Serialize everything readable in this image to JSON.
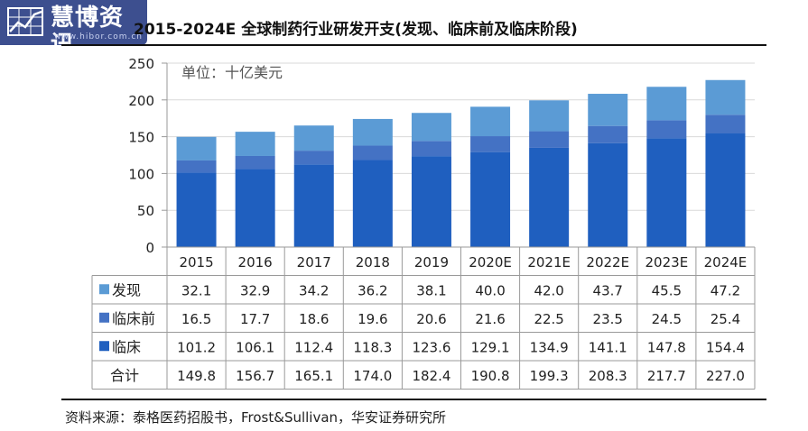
{
  "logo": {
    "text": "慧博资讯",
    "url": "www.hibor.com.cn"
  },
  "page_title": "2015-2024E 全球制药行业研发开支(发现、临床前及临床阶段)",
  "source_note": "资料来源：泰格医药招股书，Frost&Sullivan，华安证券研究所",
  "colors": {
    "discovery": "#5b9bd5",
    "preclinical": "#4472c4",
    "clinical": "#1f5fbf",
    "grid": "#d9d9d9",
    "axis": "#999999"
  },
  "chart_data": {
    "type": "bar",
    "stacked": true,
    "unit_label": "单位：十亿美元",
    "categories": [
      "2015",
      "2016",
      "2017",
      "2018",
      "2019",
      "2020E",
      "2021E",
      "2022E",
      "2023E",
      "2024E"
    ],
    "series": [
      {
        "name": "临床",
        "color": "#1f5fbf",
        "values": [
          101.2,
          106.1,
          112.4,
          118.3,
          123.6,
          129.1,
          134.9,
          141.1,
          147.8,
          154.4
        ]
      },
      {
        "name": "临床前",
        "color": "#4472c4",
        "values": [
          16.5,
          17.7,
          18.6,
          19.6,
          20.6,
          21.6,
          22.5,
          23.5,
          24.5,
          25.4
        ]
      },
      {
        "name": "发现",
        "color": "#5b9bd5",
        "values": [
          32.1,
          32.9,
          34.2,
          36.2,
          38.1,
          40.0,
          42.0,
          43.7,
          45.5,
          47.2
        ]
      }
    ],
    "table_rows": [
      {
        "name": "发现",
        "color": "#5b9bd5",
        "values": [
          "32.1",
          "32.9",
          "34.2",
          "36.2",
          "38.1",
          "40.0",
          "42.0",
          "43.7",
          "45.5",
          "47.2"
        ]
      },
      {
        "name": "临床前",
        "color": "#4472c4",
        "values": [
          "16.5",
          "17.7",
          "18.6",
          "19.6",
          "20.6",
          "21.6",
          "22.5",
          "23.5",
          "24.5",
          "25.4"
        ]
      },
      {
        "name": "临床",
        "color": "#1f5fbf",
        "values": [
          "101.2",
          "106.1",
          "112.4",
          "118.3",
          "123.6",
          "129.1",
          "134.9",
          "141.1",
          "147.8",
          "154.4"
        ]
      },
      {
        "name": "合计",
        "color": "",
        "values": [
          "149.8",
          "156.7",
          "165.1",
          "174.0",
          "182.4",
          "190.8",
          "199.3",
          "208.3",
          "217.7",
          "227.0"
        ]
      }
    ],
    "yticks": [
      "0",
      "50",
      "100",
      "150",
      "200",
      "250"
    ],
    "ylim": [
      0,
      250
    ],
    "grid": true,
    "legend": "data-table"
  }
}
